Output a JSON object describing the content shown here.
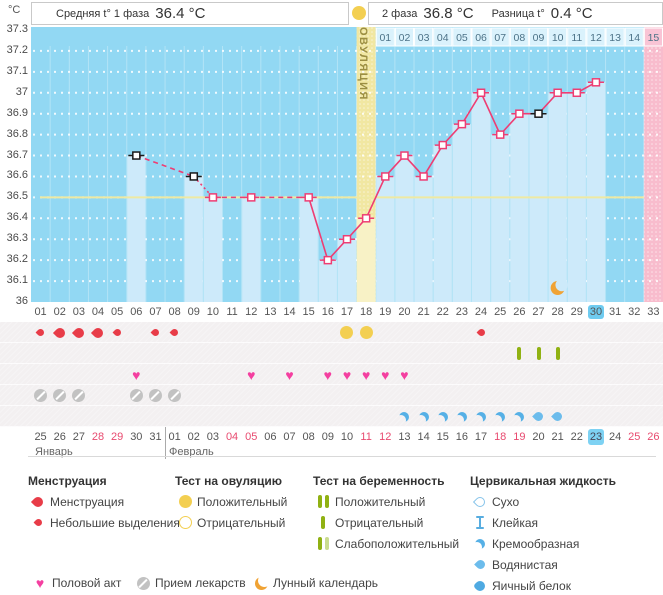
{
  "header": {
    "unit": "°C",
    "phase1_label": "Средняя t° 1 фаза",
    "phase1_value": "36.4 °C",
    "phase2_label": "2 фаза",
    "phase2_value": "36.8 °C",
    "diff_label": "Разница t°",
    "diff_value": "0.4 °C"
  },
  "chart_data": {
    "type": "line",
    "title": "График базальной температуры",
    "ylabel": "°C",
    "ylim": [
      36.0,
      37.3
    ],
    "ytick_labels": [
      "37.3",
      "37.2",
      "37.1",
      "37",
      "36.9",
      "36.8",
      "36.7",
      "36.6",
      "36.5",
      "36.4",
      "36.3",
      "36.2",
      "36.1",
      "36"
    ],
    "days_total": 33,
    "day_labels": [
      "01",
      "02",
      "03",
      "04",
      "05",
      "06",
      "07",
      "08",
      "09",
      "10",
      "11",
      "12",
      "13",
      "14",
      "15",
      "16",
      "17",
      "18",
      "19",
      "20",
      "21",
      "22",
      "23",
      "24",
      "25",
      "26",
      "27",
      "28",
      "29",
      "30",
      "31",
      "32",
      "33"
    ],
    "current_cycle_day": 30,
    "coverline_temp": 36.5,
    "ovulation_day": 18,
    "ovulation_label": "ОВУЛЯЦИЯ",
    "expected_period_day": 33,
    "post_ovulation_day_labels": [
      "01",
      "02",
      "03",
      "04",
      "05",
      "06",
      "07",
      "08",
      "09",
      "10",
      "11",
      "12",
      "13",
      "14",
      "15"
    ],
    "moon_day": 28,
    "points": [
      {
        "day": 6,
        "temp": 36.7,
        "marker": "black"
      },
      {
        "day": 9,
        "temp": 36.6,
        "marker": "black"
      },
      {
        "day": 10,
        "temp": 36.5,
        "marker": "pink"
      },
      {
        "day": 12,
        "temp": 36.5,
        "marker": "pink"
      },
      {
        "day": 15,
        "temp": 36.5,
        "marker": "pink"
      },
      {
        "day": 16,
        "temp": 36.2,
        "marker": "pink"
      },
      {
        "day": 17,
        "temp": 36.3,
        "marker": "pink"
      },
      {
        "day": 18,
        "temp": 36.4,
        "marker": "pink"
      },
      {
        "day": 19,
        "temp": 36.6,
        "marker": "pink"
      },
      {
        "day": 20,
        "temp": 36.7,
        "marker": "pink"
      },
      {
        "day": 21,
        "temp": 36.6,
        "marker": "pink"
      },
      {
        "day": 22,
        "temp": 36.75,
        "marker": "pink"
      },
      {
        "day": 23,
        "temp": 36.85,
        "marker": "pink"
      },
      {
        "day": 24,
        "temp": 37.0,
        "marker": "pink"
      },
      {
        "day": 25,
        "temp": 36.8,
        "marker": "pink"
      },
      {
        "day": 26,
        "temp": 36.9,
        "marker": "pink"
      },
      {
        "day": 27,
        "temp": 36.9,
        "marker": "black"
      },
      {
        "day": 28,
        "temp": 37.0,
        "marker": "pink"
      },
      {
        "day": 29,
        "temp": 37.0,
        "marker": "pink"
      },
      {
        "day": 30,
        "temp": 37.05,
        "marker": "pink"
      }
    ],
    "segment_styles": [
      {
        "from": 6,
        "to": 9,
        "style": "dashed"
      },
      {
        "from": 9,
        "to": 10,
        "style": "dotted"
      },
      {
        "from": 10,
        "to": 12,
        "style": "dashed"
      },
      {
        "from": 12,
        "to": 15,
        "style": "dashed"
      }
    ]
  },
  "events": {
    "menstruation": [
      {
        "day": 1,
        "size": "small"
      },
      {
        "day": 2,
        "size": "big"
      },
      {
        "day": 3,
        "size": "big"
      },
      {
        "day": 4,
        "size": "big"
      },
      {
        "day": 5,
        "size": "small"
      },
      {
        "day": 7,
        "size": "small"
      },
      {
        "day": 8,
        "size": "small"
      },
      {
        "day": 24,
        "size": "small"
      }
    ],
    "ovulation_tests": [
      {
        "day": 17,
        "result": "positive"
      },
      {
        "day": 18,
        "result": "positive"
      }
    ],
    "pregnancy_tests": [
      {
        "day": 26,
        "result": "negative"
      },
      {
        "day": 27,
        "result": "negative"
      },
      {
        "day": 28,
        "result": "negative"
      }
    ],
    "intercourse_days": [
      6,
      12,
      14,
      16,
      17,
      18,
      19,
      20
    ],
    "medication_days": [
      1,
      2,
      3,
      6,
      7,
      8
    ],
    "cervical_fluid": [
      {
        "day": 20,
        "type": "creamy"
      },
      {
        "day": 21,
        "type": "creamy"
      },
      {
        "day": 22,
        "type": "creamy"
      },
      {
        "day": 23,
        "type": "creamy"
      },
      {
        "day": 24,
        "type": "creamy"
      },
      {
        "day": 25,
        "type": "creamy"
      },
      {
        "day": 26,
        "type": "creamy"
      },
      {
        "day": 27,
        "type": "watery"
      },
      {
        "day": 28,
        "type": "watery"
      }
    ]
  },
  "calendar": {
    "date_labels": [
      "25",
      "26",
      "27",
      "28",
      "29",
      "30",
      "31",
      "01",
      "02",
      "03",
      "04",
      "05",
      "06",
      "07",
      "08",
      "09",
      "10",
      "11",
      "12",
      "13",
      "14",
      "15",
      "16",
      "17",
      "18",
      "19",
      "20",
      "21",
      "22",
      "23",
      "24",
      "25",
      "26"
    ],
    "red_days": [
      4,
      5,
      11,
      12,
      18,
      19,
      25,
      26,
      32,
      33
    ],
    "today_day": 30,
    "month_divider_after_day": 7,
    "months": [
      {
        "name": "Январь",
        "start_day": 1
      },
      {
        "name": "Февраль",
        "start_day": 8
      }
    ]
  },
  "legend": {
    "menstruation": {
      "title": "Менструация",
      "items": [
        {
          "label": "Менструация"
        },
        {
          "label": "Небольшие выделения"
        }
      ]
    },
    "ovulation_test": {
      "title": "Тест на овуляцию",
      "items": [
        {
          "label": "Положительный"
        },
        {
          "label": "Отрицательный"
        }
      ]
    },
    "pregnancy_test": {
      "title": "Тест на беременность",
      "items": [
        {
          "label": "Положительный"
        },
        {
          "label": "Отрицательный"
        },
        {
          "label": "Слабоположительный"
        }
      ]
    },
    "cervical_fluid": {
      "title": "Цервикальная жидкость",
      "items": [
        {
          "label": "Сухо"
        },
        {
          "label": "Клейкая"
        },
        {
          "label": "Кремообразная"
        },
        {
          "label": "Водянистая"
        },
        {
          "label": "Яичный белок"
        }
      ]
    },
    "intercourse_label": "Половой акт",
    "medication_label": "Прием лекарств",
    "lunar_label": "Лунный календарь"
  },
  "colors": {
    "plot_bg": "#92d8f3",
    "bar_light": "#cdeafa",
    "ovulation_band": "#f1e7a2",
    "ovulation_bar": "#f8f2c6",
    "ovulation_text": "#9b8e42",
    "period_band": "#f8bccd",
    "dpo_cell": "#daf2fc",
    "dpo_cell_period": "#f9c4d5",
    "dpo_text": "#4c7287",
    "coverline": "#efe9a2",
    "curve": "#ee3d73",
    "marker_black": "#1a1a1a",
    "menses_red": "#e83c48",
    "heart_pink": "#f43fa0",
    "test_yellow": "#f3cf51",
    "preg_green": "#90b113",
    "fluid_blue": "#56b0e6",
    "moon_orange": "#f0a334",
    "today_blue": "#6fcbf0"
  }
}
